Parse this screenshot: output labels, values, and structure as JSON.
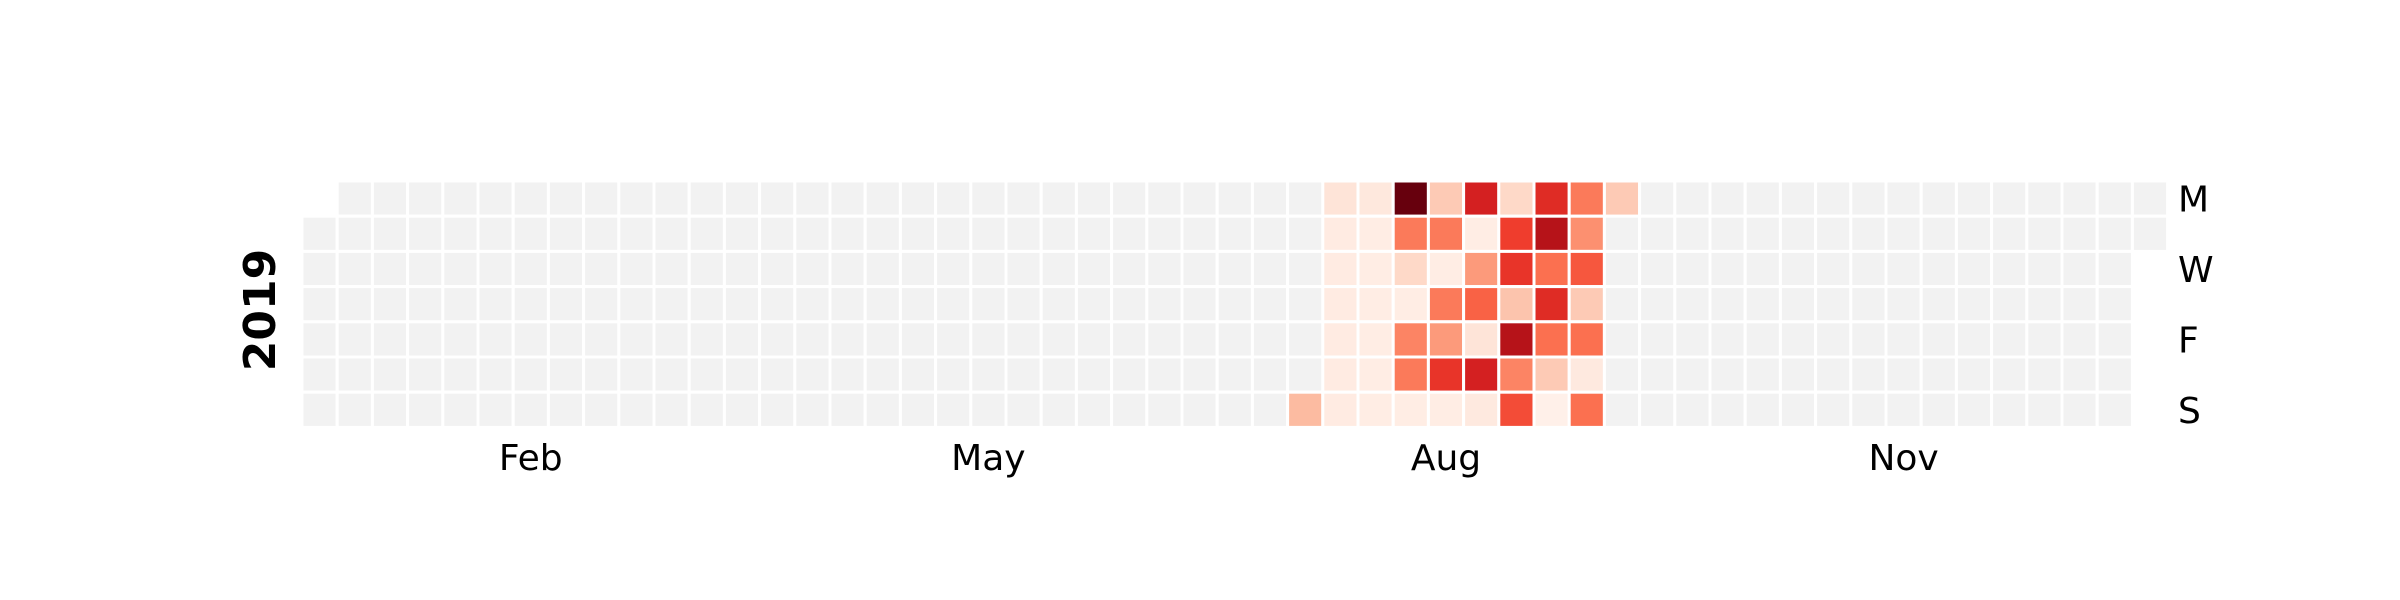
{
  "chart_data": {
    "type": "heatmap",
    "title": "",
    "year": "2019",
    "first_weekday_offset": 1,
    "weekday_labels": [
      {
        "row": 0,
        "label": "M"
      },
      {
        "row": 2,
        "label": "W"
      },
      {
        "row": 4,
        "label": "F"
      },
      {
        "row": 6,
        "label": "S"
      }
    ],
    "month_labels": [
      {
        "week": 6,
        "label": "Feb"
      },
      {
        "week": 19,
        "label": "May"
      },
      {
        "week": 32,
        "label": "Aug"
      },
      {
        "week": 45,
        "label": "Nov"
      }
    ],
    "colormap": "Reds",
    "empty_color": "#f2f2f2",
    "cell_border_color": "#ffffff",
    "value_range": [
      0,
      1
    ],
    "active_weeks": [
      {
        "week": 28,
        "values": [
          null,
          null,
          null,
          null,
          null,
          null,
          0.25
        ]
      },
      {
        "week": 29,
        "values": [
          0.1,
          0.06,
          0.06,
          0.06,
          0.06,
          0.06,
          0.06
        ]
      },
      {
        "week": 30,
        "values": [
          0.08,
          0.05,
          0.05,
          0.05,
          0.05,
          0.05,
          0.05
        ]
      },
      {
        "week": 31,
        "values": [
          1.0,
          0.45,
          0.15,
          0.05,
          0.42,
          0.45,
          0.05
        ]
      },
      {
        "week": 32,
        "values": [
          0.2,
          0.45,
          0.05,
          0.45,
          0.35,
          0.65,
          0.05
        ]
      },
      {
        "week": 33,
        "values": [
          0.72,
          0.05,
          0.35,
          0.52,
          0.1,
          0.72,
          0.07
        ]
      },
      {
        "week": 34,
        "values": [
          0.15,
          0.62,
          0.65,
          0.22,
          0.82,
          0.42,
          0.58
        ]
      },
      {
        "week": 35,
        "values": [
          0.68,
          0.82,
          0.48,
          0.68,
          0.48,
          0.2,
          0.03
        ]
      },
      {
        "week": 36,
        "values": [
          0.45,
          0.38,
          0.55,
          0.2,
          0.48,
          0.07,
          0.48
        ]
      },
      {
        "week": 37,
        "values": [
          0.2,
          null,
          null,
          null,
          null,
          null,
          null
        ]
      }
    ]
  }
}
